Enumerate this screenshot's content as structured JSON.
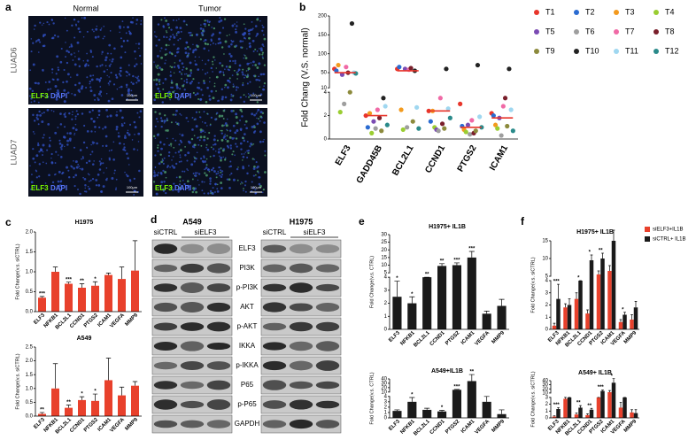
{
  "panels": [
    "a",
    "b",
    "c",
    "d",
    "e",
    "f"
  ],
  "images": {
    "columns": [
      "Normal",
      "Tumor"
    ],
    "rows": [
      "LUAD6",
      "LUAD7"
    ],
    "stain": [
      "ELF3",
      "DAPI"
    ],
    "scale_bar": "100μm"
  },
  "blot": {
    "cell_lines": [
      "A549",
      "H1975"
    ],
    "lanes": [
      "siCTRL",
      "siELF3"
    ],
    "proteins": [
      "ELF3",
      "PI3K",
      "p-PI3K",
      "AKT",
      "p-AKT",
      "IKKA",
      "p-IKKA",
      "P65",
      "p-P65",
      "GAPDH"
    ]
  },
  "chart_data": [
    {
      "type": "dot",
      "y_label": "Fold Chang (V.S. normal)",
      "categories": [
        "ELF3",
        "GADD45B",
        "BCL2L1",
        "CCND1",
        "PTGS2",
        "ICAM1"
      ],
      "series": [
        {
          "name": "T1",
          "color": "#e8352b",
          "values": [
            60,
            2.0,
            60,
            2.4,
            3.0,
            2.2
          ]
        },
        {
          "name": "T2",
          "color": "#2a6bd1",
          "values": [
            55,
            1.0,
            65,
            1.5,
            1.1,
            2.0
          ]
        },
        {
          "name": "T3",
          "color": "#f39a1e",
          "values": [
            70,
            2.2,
            2.5,
            2.4,
            0.8,
            1.2
          ]
        },
        {
          "name": "T4",
          "color": "#9acd32",
          "values": [
            2.3,
            0.5,
            0.8,
            1.0,
            0.6,
            0.9
          ]
        },
        {
          "name": "T5",
          "color": "#7b4bb3",
          "values": [
            45,
            1.5,
            60,
            0.8,
            1.2,
            1.8
          ]
        },
        {
          "name": "T6",
          "color": "#9e9e9e",
          "values": [
            3.0,
            0.9,
            1.0,
            0.7,
            0.4,
            0.3
          ]
        },
        {
          "name": "T7",
          "color": "#f06aa6",
          "values": [
            65,
            2.5,
            58,
            3.5,
            1.6,
            2.8
          ]
        },
        {
          "name": "T8",
          "color": "#7a1f2b",
          "values": [
            50,
            1.8,
            62,
            1.3,
            0.5,
            3.5
          ]
        },
        {
          "name": "T9",
          "color": "#8c8a3c",
          "values": [
            4.0,
            0.7,
            1.5,
            0.9,
            0.7,
            1.1
          ]
        },
        {
          "name": "T10",
          "color": "#222222",
          "values": [
            180,
            3.5,
            55,
            60,
            70,
            60
          ]
        },
        {
          "name": "T11",
          "color": "#9fd7f0",
          "values": [
            50,
            2.8,
            2.7,
            2.6,
            1.9,
            2.5
          ]
        },
        {
          "name": "T12",
          "color": "#2a8a8a",
          "values": [
            48,
            1.2,
            0.9,
            1.8,
            1.0,
            0.7
          ]
        }
      ],
      "medians": [
        50,
        2.0,
        55,
        2.4,
        1.0,
        1.8
      ],
      "median_color": "#e8352b",
      "ylim": [
        0,
        200
      ],
      "ybreak": [
        4,
        10
      ],
      "yticks": [
        0,
        2,
        4,
        10,
        50,
        100,
        150,
        200
      ]
    },
    {
      "type": "bar",
      "title": "H1975",
      "y_label": "Fold Change(v.s. siCTRL)",
      "categories": [
        "ELF3",
        "NFKB1",
        "BCL2L1",
        "CCND1",
        "PTGS2",
        "ICAM1",
        "VEGFA",
        "MMP9"
      ],
      "values": [
        0.35,
        1.0,
        0.7,
        0.6,
        0.65,
        0.92,
        0.82,
        1.03
      ],
      "errors": [
        0.03,
        0.12,
        0.04,
        0.1,
        0.1,
        0.05,
        0.3,
        0.75
      ],
      "sig": [
        "***",
        null,
        "***",
        "**",
        "*",
        null,
        null,
        null
      ],
      "color": "#e8412c",
      "ylim": [
        0,
        2
      ],
      "yticks": [
        {
          "value": 0,
          "label": "0.0"
        },
        0.5,
        {
          "value": 1,
          "label": "1.0"
        },
        1.5,
        {
          "value": 2,
          "label": "2.0"
        }
      ]
    },
    {
      "type": "bar",
      "title": "A549",
      "y_label": "Fold Change(v.s. siCTRL)",
      "categories": [
        "ELF3",
        "NFKB1",
        "BCL2L1",
        "CCND1",
        "PTGS2",
        "ICAM1",
        "VEGFA",
        "MMP9"
      ],
      "values": [
        0.08,
        1.0,
        0.3,
        0.58,
        0.55,
        1.3,
        0.75,
        1.1
      ],
      "errors": [
        0.05,
        0.9,
        0.1,
        0.12,
        0.25,
        0.8,
        0.3,
        0.15
      ],
      "sig": [
        "**",
        null,
        "**",
        "*",
        "*",
        null,
        null,
        null
      ],
      "color": "#e8412c",
      "ylim": [
        0,
        2.5
      ],
      "yticks": [
        {
          "value": 0,
          "label": "0.0"
        },
        0.5,
        {
          "value": 1,
          "label": "1.0"
        },
        1.5,
        {
          "value": 2,
          "label": "2.0"
        },
        2.5
      ]
    },
    {
      "type": "bar",
      "title": "H1975+ IL1B",
      "y_label": "Fold Change(v.s. CTRL)",
      "categories": [
        "ELF3",
        "NFKB1",
        "BCL2L1",
        "CCND1",
        "PTGS2",
        "ICAM1",
        "VEGFA",
        "MMP9"
      ],
      "values": [
        2.5,
        2.0,
        4.2,
        9.5,
        10,
        15,
        1.2,
        1.8
      ],
      "errors": [
        1.2,
        0.5,
        0.6,
        1.5,
        1.5,
        4,
        0.2,
        0.5
      ],
      "sig": [
        "*",
        "*",
        "**",
        "**",
        "***",
        "***",
        null,
        null
      ],
      "color": "#1a1a1a",
      "ylim": [
        0,
        30
      ],
      "ybreak": [
        4,
        5
      ],
      "yticks": [
        0,
        1,
        2,
        3,
        4,
        5,
        10,
        15,
        20,
        25,
        30
      ]
    },
    {
      "type": "bar",
      "title": "A549+IL1B",
      "y_label": "Fold Change(v.s. CTRL)",
      "categories": [
        "ELF3",
        "NFKB1",
        "BCL2L1",
        "CCND1",
        "PTGS2",
        "ICAM1",
        "VEGFA",
        "MMP9"
      ],
      "values": [
        1.3,
        3.0,
        1.5,
        1.2,
        15,
        35,
        3.0,
        0.7
      ],
      "errors": [
        0.2,
        0.8,
        0.3,
        0.2,
        1,
        15,
        1.5,
        0.8
      ],
      "sig": [
        null,
        "*",
        null,
        "*",
        "***",
        "**",
        null,
        null
      ],
      "color": "#1a1a1a",
      "ylim": [
        0,
        40
      ],
      "ybreak": [
        4,
        10
      ],
      "yticks": [
        0,
        1,
        2,
        3,
        4,
        10,
        20,
        30,
        40
      ]
    },
    {
      "type": "bar",
      "title": "H1975+ IL1B",
      "y_label": "Fold Change(v.s. siCTRL)",
      "categories": [
        "ELF3",
        "NFKB1",
        "BCL2L1",
        "CCND1",
        "PTGS2",
        "ICAM1",
        "VEGFA",
        "MMP9"
      ],
      "series": [
        {
          "name": "siELF3+IL1B",
          "color": "#e8412c",
          "values": [
            0.3,
            1.8,
            2.5,
            1.3,
            5.5,
            6.5,
            0.6,
            0.8
          ],
          "errors": [
            0.2,
            0.3,
            0.5,
            0.3,
            1,
            1.5,
            0.2,
            0.4
          ]
        },
        {
          "name": "siCTRL+ IL1B",
          "color": "#1a1a1a",
          "values": [
            2.5,
            2.0,
            4.2,
            9.5,
            10,
            15,
            1.2,
            1.8
          ],
          "errors": [
            1.2,
            0.5,
            0.6,
            1.5,
            1.5,
            3,
            0.2,
            0.5
          ]
        }
      ],
      "sig": [
        "***",
        null,
        "*",
        "*",
        "**",
        null,
        "*",
        null
      ],
      "ylim": [
        0,
        15
      ],
      "ybreak": [
        4,
        5
      ],
      "yticks": [
        0,
        1,
        2,
        3,
        4,
        5,
        10,
        15
      ]
    },
    {
      "type": "bar",
      "title": "A549+ IL1B",
      "y_label": "Fold Change(v.s. siCTRL)",
      "categories": [
        "ELF3",
        "NFKB1",
        "BCL2L1",
        "CCND1",
        "PTGS2",
        "ICAM1",
        "VEGFA",
        "MMP9"
      ],
      "series": [
        {
          "name": "siELF3+IL1B",
          "color": "#e8412c",
          "values": [
            0.2,
            2.8,
            0.5,
            0.4,
            3.0,
            12,
            1.5,
            0.8
          ],
          "errors": [
            0.1,
            0.8,
            0.2,
            0.2,
            0.5,
            4,
            0.8,
            0.4
          ]
        },
        {
          "name": "siCTRL+ IL1B",
          "color": "#1a1a1a",
          "values": [
            1.3,
            3.0,
            1.5,
            1.2,
            15,
            35,
            3.0,
            0.7
          ],
          "errors": [
            0.2,
            0.8,
            0.3,
            0.2,
            2,
            10,
            1.5,
            0.5
          ]
        }
      ],
      "sig": [
        "***",
        null,
        "**",
        "**",
        "***",
        "*",
        null,
        null
      ],
      "ylim": [
        0,
        40
      ],
      "ybreak": [
        3,
        10
      ],
      "yticks": [
        0,
        1,
        2,
        3,
        10,
        20,
        30,
        40
      ]
    }
  ]
}
